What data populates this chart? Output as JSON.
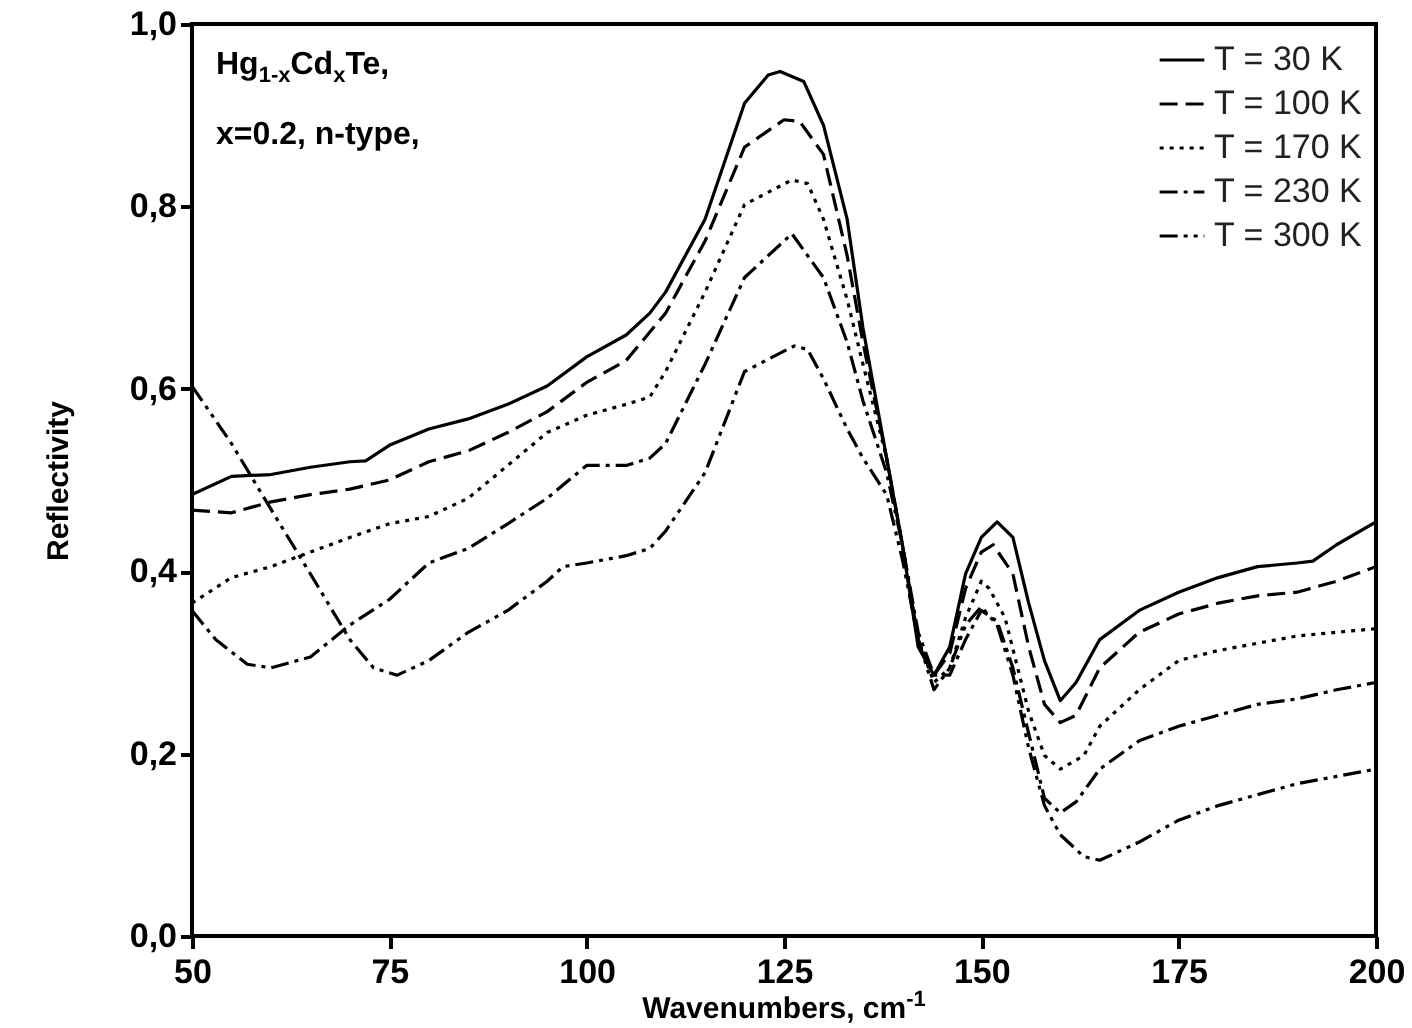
{
  "chart_data": {
    "type": "line",
    "xlabel": "Wavenumbers, cm$^{-1}$",
    "ylabel": "Reflectivity",
    "annotations": [
      "Hg$_{1-x}$Cd$_{x}$Te,",
      "x=0.2, n-type,"
    ],
    "xlim": [
      50,
      200
    ],
    "xticks": [
      50,
      75,
      100,
      125,
      150,
      175,
      200
    ],
    "ylim": [
      0,
      1
    ],
    "yticks": [
      {
        "value": 0,
        "label": "0,0"
      },
      {
        "value": 0.2,
        "label": "0,2"
      },
      {
        "value": 0.4,
        "label": "0,4"
      },
      {
        "value": 0.6,
        "label": "0,6"
      },
      {
        "value": 0.8,
        "label": "0,8"
      },
      {
        "value": 1,
        "label": "1,0"
      }
    ],
    "grid": false,
    "legend": "top right",
    "marker": "none",
    "series": [
      {
        "name": "T = 30 K",
        "color": "#000000",
        "line_style": "solid",
        "x": [
          50,
          55,
          60,
          65,
          70,
          72,
          75,
          80,
          85,
          90,
          95,
          100,
          105,
          108,
          110,
          115,
          120,
          123,
          124.5,
          127.5,
          130,
          133,
          135,
          138,
          140,
          142,
          144,
          146,
          148,
          150,
          152,
          154,
          156,
          158,
          160,
          162,
          165,
          170,
          175,
          180,
          185,
          190,
          192,
          195,
          200
        ],
        "values": [
          0.484,
          0.504,
          0.506,
          0.514,
          0.52,
          0.521,
          0.538,
          0.556,
          0.567,
          0.583,
          0.603,
          0.635,
          0.659,
          0.683,
          0.706,
          0.786,
          0.913,
          0.944,
          0.948,
          0.937,
          0.889,
          0.786,
          0.667,
          0.524,
          0.429,
          0.317,
          0.286,
          0.317,
          0.397,
          0.437,
          0.454,
          0.437,
          0.365,
          0.302,
          0.258,
          0.278,
          0.325,
          0.357,
          0.377,
          0.393,
          0.405,
          0.409,
          0.411,
          0.429,
          0.454
        ]
      },
      {
        "name": "T = 100 K",
        "color": "#000000",
        "line_style": "dashed",
        "x": [
          50,
          55,
          60,
          65,
          70,
          75,
          80,
          85,
          90,
          95,
          100,
          105,
          110,
          115,
          120,
          125,
          127,
          130,
          133,
          135,
          138,
          140,
          142,
          144,
          146,
          148,
          150,
          151.5,
          154,
          156,
          158,
          160,
          162,
          165,
          170,
          175,
          180,
          185,
          190,
          195,
          200
        ],
        "values": [
          0.467,
          0.464,
          0.476,
          0.484,
          0.49,
          0.5,
          0.52,
          0.532,
          0.552,
          0.575,
          0.607,
          0.631,
          0.683,
          0.762,
          0.865,
          0.895,
          0.893,
          0.857,
          0.746,
          0.651,
          0.524,
          0.429,
          0.325,
          0.286,
          0.31,
          0.381,
          0.421,
          0.429,
          0.397,
          0.317,
          0.254,
          0.234,
          0.242,
          0.294,
          0.333,
          0.353,
          0.365,
          0.373,
          0.377,
          0.389,
          0.405
        ]
      },
      {
        "name": "T = 170 K",
        "color": "#000000",
        "line_style": "dotted",
        "x": [
          50,
          55,
          60,
          65,
          70,
          75,
          80,
          85,
          90,
          95,
          100,
          105,
          108,
          110,
          115,
          120,
          126,
          128,
          130,
          133,
          135,
          138,
          140,
          142,
          144,
          146,
          148,
          150,
          151,
          153,
          156,
          158,
          160,
          163,
          165,
          170,
          175,
          180,
          185,
          190,
          195,
          200
        ],
        "values": [
          0.365,
          0.393,
          0.405,
          0.421,
          0.437,
          0.452,
          0.46,
          0.48,
          0.516,
          0.552,
          0.571,
          0.583,
          0.591,
          0.619,
          0.706,
          0.802,
          0.829,
          0.825,
          0.786,
          0.698,
          0.627,
          0.524,
          0.429,
          0.325,
          0.278,
          0.294,
          0.349,
          0.389,
          0.381,
          0.349,
          0.246,
          0.198,
          0.183,
          0.198,
          0.23,
          0.27,
          0.302,
          0.313,
          0.321,
          0.329,
          0.333,
          0.337
        ]
      },
      {
        "name": "T = 230 K",
        "color": "#000000",
        "line_style": "dashdot",
        "x": [
          50,
          53,
          57,
          60,
          65,
          70,
          75,
          80,
          85,
          90,
          95,
          100,
          105,
          108,
          110,
          115,
          120,
          126,
          130,
          133,
          135,
          138,
          140,
          142,
          144,
          146,
          148,
          150,
          152,
          154,
          156,
          158,
          160,
          162,
          165,
          170,
          175,
          180,
          185,
          190,
          195,
          200
        ],
        "values": [
          0.357,
          0.325,
          0.298,
          0.294,
          0.306,
          0.341,
          0.369,
          0.409,
          0.425,
          0.452,
          0.48,
          0.516,
          0.516,
          0.524,
          0.54,
          0.627,
          0.722,
          0.77,
          0.722,
          0.651,
          0.587,
          0.508,
          0.429,
          0.333,
          0.286,
          0.286,
          0.325,
          0.357,
          0.345,
          0.294,
          0.222,
          0.151,
          0.135,
          0.147,
          0.183,
          0.214,
          0.23,
          0.242,
          0.254,
          0.26,
          0.27,
          0.278
        ]
      },
      {
        "name": "T = 300 K",
        "color": "#000000",
        "line_style": "dashdotdot",
        "x": [
          50,
          55,
          60,
          65,
          70,
          73,
          76,
          80,
          85,
          90,
          95,
          97,
          100,
          105,
          108,
          110,
          115,
          120,
          126.3,
          128,
          130,
          133,
          135,
          138,
          140,
          142,
          144,
          146,
          148,
          150,
          152,
          154,
          156,
          158,
          160,
          163,
          165,
          170,
          175,
          180,
          185,
          190,
          195,
          200
        ],
        "values": [
          0.603,
          0.54,
          0.468,
          0.397,
          0.325,
          0.294,
          0.286,
          0.302,
          0.333,
          0.357,
          0.389,
          0.405,
          0.409,
          0.417,
          0.425,
          0.444,
          0.508,
          0.619,
          0.647,
          0.643,
          0.611,
          0.556,
          0.524,
          0.484,
          0.413,
          0.325,
          0.27,
          0.294,
          0.341,
          0.361,
          0.341,
          0.286,
          0.206,
          0.143,
          0.111,
          0.087,
          0.083,
          0.103,
          0.127,
          0.143,
          0.155,
          0.167,
          0.175,
          0.183
        ]
      }
    ]
  }
}
